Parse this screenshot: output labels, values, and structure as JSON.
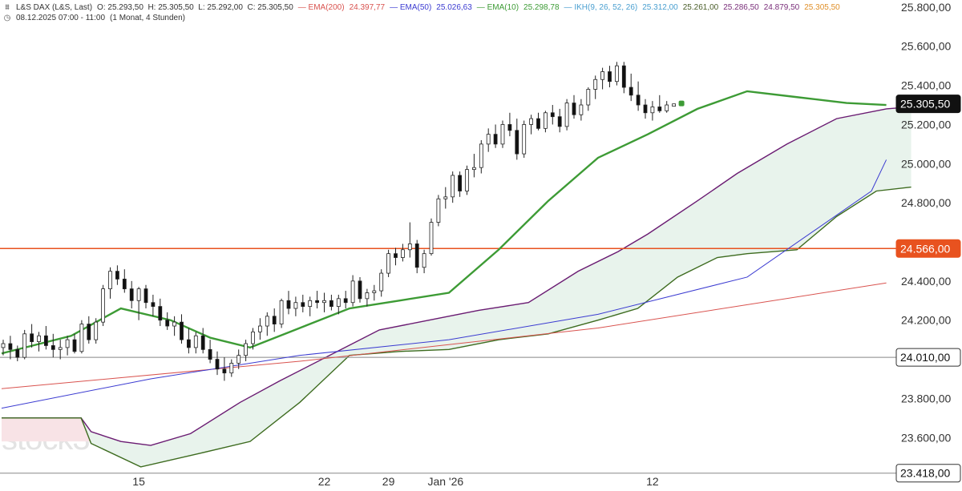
{
  "legend": {
    "symbol": "L&S DAX (L&S, Last)",
    "ohlc": {
      "o_label": "O:",
      "o": "25.293,50",
      "h_label": "H:",
      "h": "25.305,50",
      "l_label": "L:",
      "l": "25.292,00",
      "c_label": "C:",
      "c": "25.305,50"
    },
    "ema200": {
      "label": "EMA(200)",
      "value": "24.397,77",
      "color": "#d9534f"
    },
    "ema50": {
      "label": "EMA(50)",
      "value": "25.026,63",
      "color": "#3b3bd1"
    },
    "ema10": {
      "label": "EMA(10)",
      "value": "25.298,78",
      "color": "#3d9b35"
    },
    "ikh": {
      "label": "IKH(9, 26, 52, 26)",
      "v1": "25.312,00",
      "v2": "25.261,00",
      "v3": "25.286,50",
      "v4": "24.879,50",
      "v5": "25.305,50",
      "c1": "#4a9fd0",
      "c2": "#4b5e2a",
      "c3": "#7a2f7a",
      "c4": "#7a2f7a",
      "c5": "#e0902a"
    },
    "date_line": "08.12.2025 07:00 - 11:00",
    "period": "(1 Monat, 4 Stunden)"
  },
  "watermark": "stock3",
  "price_axis": {
    "ticks": [
      "25.800,00",
      "25.600,00",
      "25.400,00",
      "25.200,00",
      "25.000,00",
      "24.800,00",
      "24.400,00",
      "24.200,00",
      "23.800,00",
      "23.600,00"
    ],
    "badges": [
      {
        "label": "25.305,50",
        "value": 25305.5,
        "style": "dark"
      },
      {
        "label": "24.566,00",
        "value": 24566,
        "style": "orange"
      },
      {
        "label": "24.010,00",
        "value": 24010,
        "style": "outline"
      },
      {
        "label": "23.418,00",
        "value": 23418,
        "style": "outline"
      }
    ]
  },
  "time_axis": {
    "ticks": [
      {
        "label": "15",
        "x_index": 19
      },
      {
        "label": "22",
        "x_index": 45
      },
      {
        "label": "29",
        "x_index": 54
      },
      {
        "label": "Jan '26",
        "x_index": 62
      },
      {
        "label": "12",
        "x_index": 91
      }
    ]
  },
  "chart_data": {
    "type": "candlestick",
    "title": "",
    "ylim": [
      23400,
      25850
    ],
    "x_count": 138,
    "candles": [
      [
        24060,
        24100,
        24020,
        24080
      ],
      [
        24080,
        24120,
        24000,
        24050
      ],
      [
        24050,
        24070,
        23990,
        24010
      ],
      [
        24010,
        24150,
        24000,
        24130
      ],
      [
        24130,
        24180,
        24060,
        24090
      ],
      [
        24090,
        24140,
        24040,
        24120
      ],
      [
        24120,
        24170,
        24050,
        24070
      ],
      [
        24070,
        24130,
        24010,
        24050
      ],
      [
        24050,
        24100,
        24000,
        24060
      ],
      [
        24060,
        24120,
        24020,
        24100
      ],
      [
        24100,
        24130,
        24030,
        24040
      ],
      [
        24040,
        24200,
        24030,
        24180
      ],
      [
        24180,
        24220,
        24080,
        24100
      ],
      [
        24100,
        24210,
        24080,
        24190
      ],
      [
        24190,
        24380,
        24170,
        24360
      ],
      [
        24360,
        24470,
        24310,
        24450
      ],
      [
        24450,
        24480,
        24380,
        24410
      ],
      [
        24410,
        24460,
        24340,
        24360
      ],
      [
        24360,
        24400,
        24260,
        24300
      ],
      [
        24300,
        24370,
        24200,
        24360
      ],
      [
        24360,
        24380,
        24260,
        24290
      ],
      [
        24290,
        24330,
        24220,
        24270
      ],
      [
        24270,
        24310,
        24170,
        24200
      ],
      [
        24200,
        24240,
        24150,
        24170
      ],
      [
        24170,
        24220,
        24120,
        24190
      ],
      [
        24190,
        24230,
        24080,
        24100
      ],
      [
        24100,
        24160,
        24030,
        24060
      ],
      [
        24060,
        24140,
        24030,
        24120
      ],
      [
        24120,
        24160,
        24030,
        24050
      ],
      [
        24050,
        24100,
        23980,
        24000
      ],
      [
        24000,
        24040,
        23920,
        23950
      ],
      [
        23950,
        24010,
        23890,
        23930
      ],
      [
        23930,
        24000,
        23910,
        23980
      ],
      [
        23980,
        24050,
        23950,
        24020
      ],
      [
        24020,
        24100,
        23990,
        24080
      ],
      [
        24080,
        24160,
        24050,
        24140
      ],
      [
        24140,
        24210,
        24100,
        24170
      ],
      [
        24170,
        24240,
        24120,
        24220
      ],
      [
        24220,
        24260,
        24140,
        24180
      ],
      [
        24180,
        24310,
        24160,
        24300
      ],
      [
        24300,
        24350,
        24230,
        24260
      ],
      [
        24260,
        24320,
        24220,
        24290
      ],
      [
        24290,
        24330,
        24240,
        24270
      ],
      [
        24270,
        24320,
        24220,
        24300
      ],
      [
        24300,
        24350,
        24260,
        24290
      ],
      [
        24290,
        24340,
        24240,
        24300
      ],
      [
        24300,
        24330,
        24250,
        24270
      ],
      [
        24270,
        24330,
        24230,
        24310
      ],
      [
        24310,
        24350,
        24260,
        24290
      ],
      [
        24290,
        24430,
        24270,
        24400
      ],
      [
        24400,
        24420,
        24290,
        24310
      ],
      [
        24310,
        24360,
        24270,
        24340
      ],
      [
        24340,
        24380,
        24300,
        24350
      ],
      [
        24350,
        24460,
        24320,
        24440
      ],
      [
        24440,
        24560,
        24420,
        24540
      ],
      [
        24540,
        24570,
        24480,
        24520
      ],
      [
        24520,
        24590,
        24500,
        24560
      ],
      [
        24560,
        24700,
        24520,
        24590
      ],
      [
        24590,
        24610,
        24440,
        24470
      ],
      [
        24470,
        24560,
        24440,
        24540
      ],
      [
        24540,
        24720,
        24530,
        24700
      ],
      [
        24700,
        24840,
        24680,
        24820
      ],
      [
        24820,
        24880,
        24770,
        24830
      ],
      [
        24830,
        24960,
        24800,
        24940
      ],
      [
        24940,
        24960,
        24830,
        24860
      ],
      [
        24860,
        24990,
        24840,
        24970
      ],
      [
        24970,
        25050,
        24930,
        24980
      ],
      [
        24980,
        25120,
        24950,
        25100
      ],
      [
        25100,
        25180,
        25060,
        25150
      ],
      [
        25150,
        25200,
        25080,
        25100
      ],
      [
        25100,
        25220,
        25080,
        25200
      ],
      [
        25200,
        25260,
        25140,
        25170
      ],
      [
        25170,
        25230,
        25020,
        25050
      ],
      [
        25050,
        25220,
        25030,
        25200
      ],
      [
        25200,
        25250,
        25150,
        25230
      ],
      [
        25230,
        25260,
        25170,
        25180
      ],
      [
        25180,
        25270,
        25160,
        25260
      ],
      [
        25260,
        25300,
        25200,
        25240
      ],
      [
        25240,
        25280,
        25160,
        25190
      ],
      [
        25190,
        25330,
        25170,
        25310
      ],
      [
        25310,
        25350,
        25230,
        25250
      ],
      [
        25250,
        25330,
        25220,
        25300
      ],
      [
        25300,
        25390,
        25270,
        25380
      ],
      [
        25380,
        25450,
        25330,
        25430
      ],
      [
        25430,
        25490,
        25380,
        25470
      ],
      [
        25470,
        25500,
        25390,
        25420
      ],
      [
        25420,
        25520,
        25400,
        25500
      ],
      [
        25500,
        25520,
        25360,
        25390
      ],
      [
        25390,
        25460,
        25320,
        25350
      ],
      [
        25350,
        25420,
        25270,
        25300
      ],
      [
        25300,
        25330,
        25230,
        25260
      ],
      [
        25260,
        25320,
        25220,
        25290
      ],
      [
        25290,
        25350,
        25260,
        25270
      ],
      [
        25270,
        25320,
        25260,
        25300
      ],
      [
        25293.5,
        25305.5,
        25292,
        25305.5
      ]
    ],
    "candle_x_start": 0,
    "candle_x_step": 7.08,
    "candle_x_offset": 2,
    "ema10": [
      [
        0,
        24030
      ],
      [
        14,
        24120
      ],
      [
        24,
        24260
      ],
      [
        34,
        24200
      ],
      [
        42,
        24110
      ],
      [
        50,
        24060
      ],
      [
        58,
        24140
      ],
      [
        70,
        24260
      ],
      [
        80,
        24300
      ],
      [
        90,
        24340
      ],
      [
        100,
        24560
      ],
      [
        110,
        24810
      ],
      [
        120,
        25030
      ],
      [
        130,
        25150
      ],
      [
        140,
        25280
      ],
      [
        150,
        25370
      ],
      [
        160,
        25340
      ],
      [
        170,
        25310
      ],
      [
        178,
        25300
      ]
    ],
    "ema50": [
      [
        0,
        23750
      ],
      [
        30,
        23900
      ],
      [
        60,
        24020
      ],
      [
        90,
        24100
      ],
      [
        120,
        24230
      ],
      [
        150,
        24420
      ],
      [
        175,
        24860
      ],
      [
        178,
        25020
      ]
    ],
    "ema200": [
      [
        0,
        23850
      ],
      [
        60,
        23990
      ],
      [
        120,
        24160
      ],
      [
        178,
        24390
      ]
    ],
    "ikh_span_a": [
      [
        0,
        23700
      ],
      [
        16,
        23700
      ],
      [
        18,
        23630
      ],
      [
        24,
        23580
      ],
      [
        30,
        23560
      ],
      [
        38,
        23620
      ],
      [
        48,
        23780
      ],
      [
        56,
        23890
      ],
      [
        66,
        24020
      ],
      [
        76,
        24150
      ],
      [
        86,
        24200
      ],
      [
        96,
        24250
      ],
      [
        106,
        24290
      ],
      [
        116,
        24450
      ],
      [
        124,
        24550
      ],
      [
        130,
        24640
      ],
      [
        140,
        24810
      ],
      [
        148,
        24950
      ],
      [
        158,
        25100
      ],
      [
        168,
        25230
      ],
      [
        178,
        25280
      ],
      [
        183,
        25290
      ]
    ],
    "ikh_span_b": [
      [
        0,
        23700
      ],
      [
        16,
        23700
      ],
      [
        18,
        23570
      ],
      [
        28,
        23450
      ],
      [
        40,
        23520
      ],
      [
        50,
        23580
      ],
      [
        60,
        23780
      ],
      [
        70,
        24020
      ],
      [
        80,
        24040
      ],
      [
        90,
        24050
      ],
      [
        100,
        24100
      ],
      [
        110,
        24130
      ],
      [
        120,
        24200
      ],
      [
        128,
        24260
      ],
      [
        136,
        24420
      ],
      [
        144,
        24520
      ],
      [
        150,
        24540
      ],
      [
        160,
        24560
      ],
      [
        168,
        24730
      ],
      [
        176,
        24860
      ],
      [
        183,
        24880
      ]
    ],
    "horizontal_lines": [
      {
        "value": 24566,
        "color": "#e8521f"
      },
      {
        "value": 24010,
        "color": "#888888"
      },
      {
        "value": 23418,
        "color": "#888888"
      }
    ]
  }
}
